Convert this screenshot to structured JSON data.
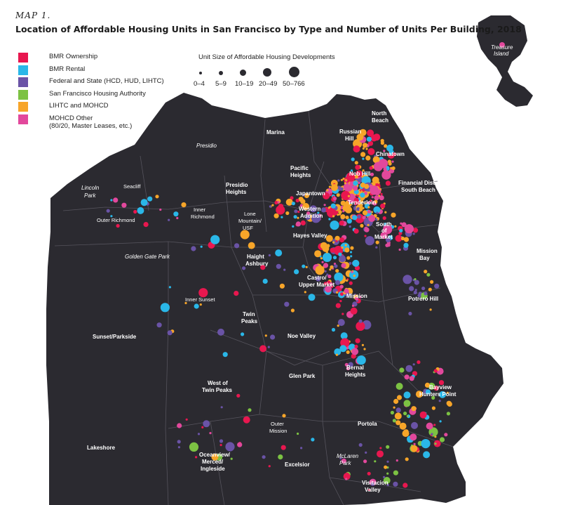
{
  "header": {
    "map_label": "MAP 1.",
    "title": "Location of Affordable Housing Units in San Francisco by Type and Number of Units Per Building, 2018"
  },
  "legend": {
    "items": [
      {
        "label": "BMR Ownership",
        "color": "#e8174f"
      },
      {
        "label": "BMR Rental",
        "color": "#2ab7e8"
      },
      {
        "label": "Federal and State (HCD, HUD, LIHTC)",
        "color": "#6a53a6"
      },
      {
        "label": "San Francisco Housing Authority",
        "color": "#7cc243"
      },
      {
        "label": "LIHTC and MOHCD",
        "color": "#f7a529"
      },
      {
        "label": "MOHCD Other",
        "sublabel": "(80/20, Master Leases, etc.)",
        "color": "#e2489c"
      }
    ]
  },
  "size_legend": {
    "title": "Unit Size of Affordable Housing Developments",
    "sizes": [
      "0–4",
      "5–9",
      "10–19",
      "20–49",
      "50–766"
    ]
  },
  "neighborhoods": [
    {
      "name": "Marina"
    },
    {
      "name": "Russian"
    },
    {
      "name": "Hill"
    },
    {
      "name": "North"
    },
    {
      "name": "Beach"
    },
    {
      "name": "Presidio"
    },
    {
      "name": "Chinatown"
    },
    {
      "name": "Pacific"
    },
    {
      "name": "Heights"
    },
    {
      "name": "Nob Hill"
    },
    {
      "name": "Lincoln"
    },
    {
      "name": "Park"
    },
    {
      "name": "Seacliff"
    },
    {
      "name": "Presidio"
    },
    {
      "name": "Heights"
    },
    {
      "name": "Japantown"
    },
    {
      "name": "Financial District/"
    },
    {
      "name": "South Beach"
    },
    {
      "name": "Tenderloin"
    },
    {
      "name": "Inner"
    },
    {
      "name": "Richmond"
    },
    {
      "name": "Outer Richmond"
    },
    {
      "name": "Western"
    },
    {
      "name": "Addition"
    },
    {
      "name": "Lone"
    },
    {
      "name": "Mountain/"
    },
    {
      "name": "USF"
    },
    {
      "name": "South"
    },
    {
      "name": "of"
    },
    {
      "name": "Market"
    },
    {
      "name": "Hayes Valley"
    },
    {
      "name": "Mission"
    },
    {
      "name": "Bay"
    },
    {
      "name": "Golden Gate Park"
    },
    {
      "name": "Haight"
    },
    {
      "name": "Ashbury"
    },
    {
      "name": "Castro/"
    },
    {
      "name": "Upper Market"
    },
    {
      "name": "Mission"
    },
    {
      "name": "Potrero Hill"
    },
    {
      "name": "Inner Sunset"
    },
    {
      "name": "Twin"
    },
    {
      "name": "Peaks"
    },
    {
      "name": "Sunset/Parkside"
    },
    {
      "name": "Noe Valley"
    },
    {
      "name": "Bernal"
    },
    {
      "name": "Heights"
    },
    {
      "name": "Glen Park"
    },
    {
      "name": "West of"
    },
    {
      "name": "Twin Peaks"
    },
    {
      "name": "Bayview"
    },
    {
      "name": "Hunters Point"
    },
    {
      "name": "Outer"
    },
    {
      "name": "Mission"
    },
    {
      "name": "Portola"
    },
    {
      "name": "Lakeshore"
    },
    {
      "name": "McLaren"
    },
    {
      "name": "Park"
    },
    {
      "name": "Oceanview/"
    },
    {
      "name": "Merced/"
    },
    {
      "name": "Ingleside"
    },
    {
      "name": "Excelsior"
    },
    {
      "name": "Visitacion"
    },
    {
      "name": "Valley"
    },
    {
      "name": "Treasure"
    },
    {
      "name": "Island"
    }
  ]
}
